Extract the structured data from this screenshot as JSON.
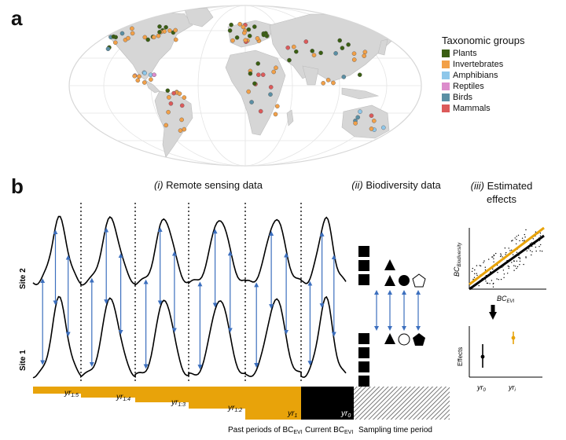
{
  "panel_a": {
    "letter": "a",
    "legend_title": "Taxonomic groups",
    "groups": [
      {
        "name": "Plants",
        "color": "#3a5e12"
      },
      {
        "name": "Invertebrates",
        "color": "#f2a048"
      },
      {
        "name": "Amphibians",
        "color": "#8ec7ea"
      },
      {
        "name": "Reptiles",
        "color": "#dc8ccc"
      },
      {
        "name": "Birds",
        "color": "#5a8fa4"
      },
      {
        "name": "Mammals",
        "color": "#dc5a5a"
      }
    ],
    "map_icon": "world-map-icon"
  },
  "panel_b": {
    "letter": "b",
    "section_i": {
      "num": "(i)",
      "title": "Remote sensing data"
    },
    "section_ii": {
      "num": "(ii)",
      "title": "Biodiversity data"
    },
    "section_iii": {
      "num": "(iii)",
      "title_line1": "Estimated",
      "title_line2": "effects"
    },
    "site2_label": "Site 2",
    "site1_label": "Site 1",
    "period_labels": [
      "yr",
      "yr",
      "yr",
      "yr",
      "yr",
      "yr"
    ],
    "period_subs": [
      "1:5",
      "1:4",
      "1:3",
      "1:2",
      "1",
      "0"
    ],
    "bottom_label_past": "Past periods of BC",
    "bottom_label_past_sub": "EVI",
    "bottom_label_current": "Current BC",
    "bottom_label_current_sub": "EVI",
    "bottom_label_sampling": "Sampling time period",
    "scatter_ylabel": "BC",
    "scatter_ylabel_sub": "Biodiversity",
    "scatter_xlabel": "BC",
    "scatter_xlabel_sub": "EVI",
    "effects_ylabel": "Effects",
    "effects_x0": "yr",
    "effects_x0_sub": "0",
    "effects_xi": "yr",
    "effects_xi_sub": "i",
    "colors": {
      "orange": "#e8a30a",
      "arrow": "#3c6fbe",
      "black": "#000000"
    }
  }
}
